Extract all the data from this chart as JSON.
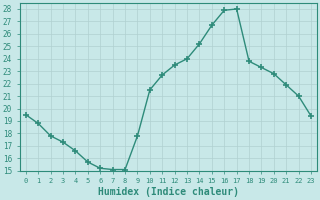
{
  "xlabel": "Humidex (Indice chaleur)",
  "x": [
    0,
    1,
    2,
    3,
    4,
    5,
    6,
    7,
    8,
    9,
    10,
    11,
    12,
    13,
    14,
    15,
    16,
    17,
    18,
    19,
    20,
    21,
    22,
    23
  ],
  "y": [
    19.5,
    18.8,
    17.8,
    17.3,
    16.6,
    15.7,
    15.2,
    15.1,
    15.1,
    17.8,
    21.5,
    22.7,
    23.5,
    24.0,
    25.2,
    26.7,
    27.9,
    28.0,
    23.8,
    23.3,
    22.8,
    21.9,
    21.0,
    19.4
  ],
  "line_color": "#2e8b7a",
  "marker": "+",
  "marker_size": 4,
  "marker_linewidth": 1.2,
  "bg_color": "#c8e8e8",
  "grid_color": "#b0d0d0",
  "ylim": [
    15,
    28.5
  ],
  "xlim": [
    -0.5,
    23.5
  ],
  "yticks": [
    15,
    16,
    17,
    18,
    19,
    20,
    21,
    22,
    23,
    24,
    25,
    26,
    27,
    28
  ],
  "xticks": [
    0,
    1,
    2,
    3,
    4,
    5,
    6,
    7,
    8,
    9,
    10,
    11,
    12,
    13,
    14,
    15,
    16,
    17,
    18,
    19,
    20,
    21,
    22,
    23
  ],
  "tick_color": "#2e8b7a",
  "label_color": "#2e8b7a",
  "spine_color": "#2e8b7a",
  "xlabel_fontsize": 7,
  "tick_labelsize": 5.5,
  "linewidth": 1.0
}
